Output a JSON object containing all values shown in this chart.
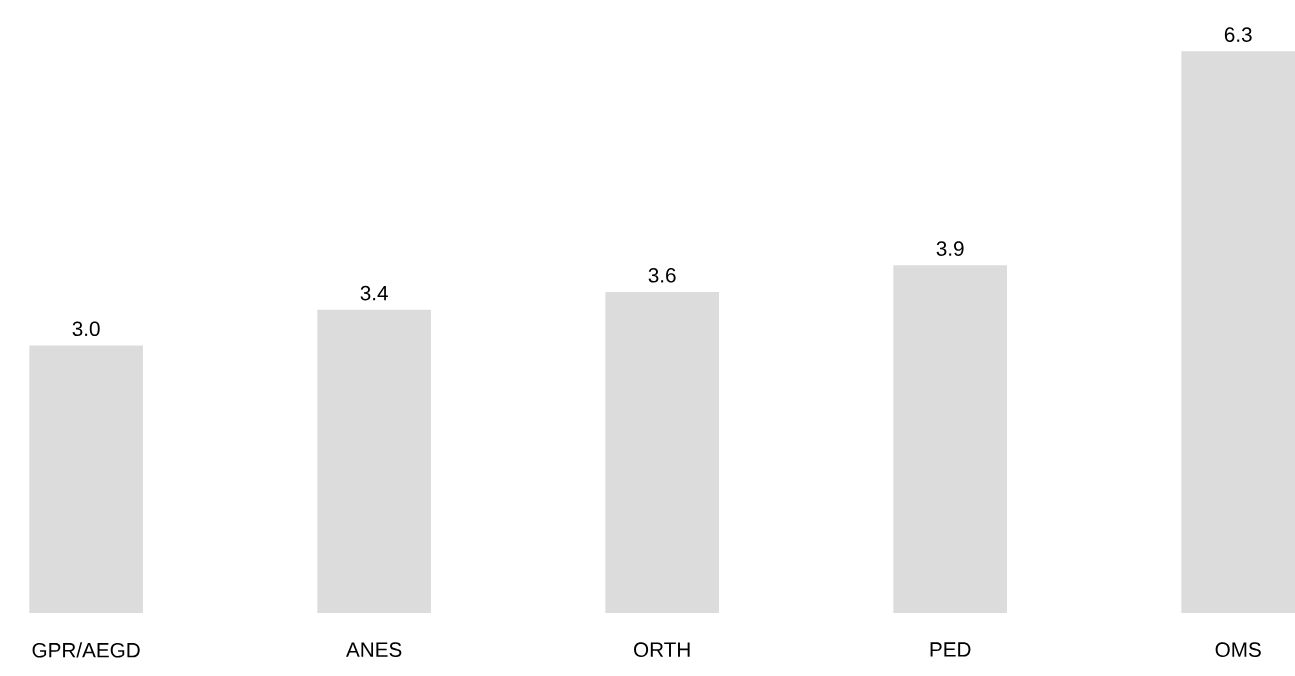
{
  "chart_data": {
    "type": "bar",
    "categories": [
      "GPR/AEGD",
      "ANES",
      "ORTH",
      "PED",
      "OMS"
    ],
    "values": [
      3.0,
      3.4,
      3.6,
      3.9,
      6.3
    ],
    "value_labels": [
      "3.0",
      "3.4",
      "3.6",
      "3.9",
      "6.3"
    ],
    "color": "#dcdcdc"
  }
}
